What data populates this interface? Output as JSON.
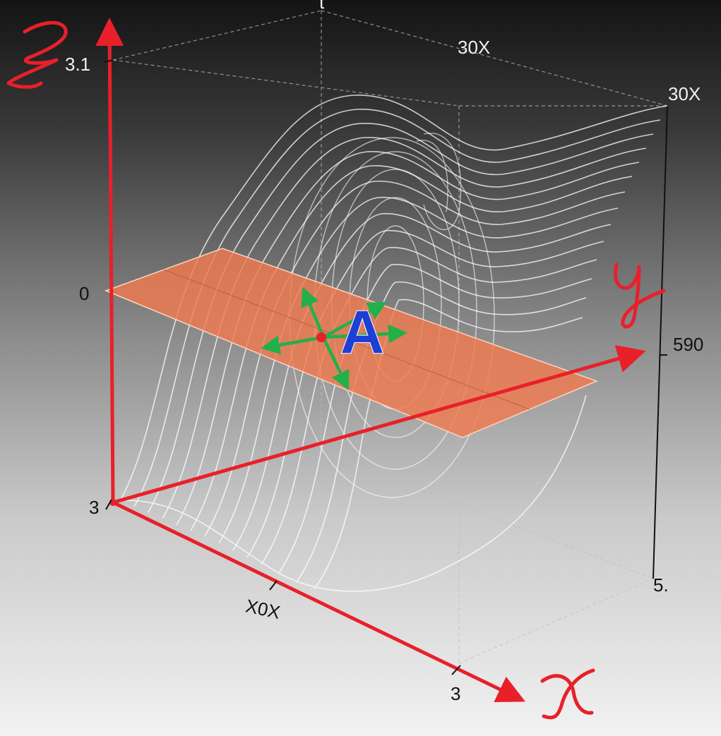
{
  "labels": {
    "z_top_tick": "3.1",
    "z_mid_tick": "0",
    "origin_tick": "3",
    "x_mid_tick": "X0X",
    "x_end_tick": "3",
    "y_tick": "590",
    "top_back_label": "30X",
    "top_right_label": "30X",
    "bottom_right_tick": "5.",
    "point_label": "A",
    "top_mark": "t"
  },
  "colors": {
    "axis": "#e8202a",
    "plane": "#f07a4f",
    "vectors": "#22b04a",
    "point_label": "#1d3fd6",
    "wireframe": "#ffffff",
    "box_edges": "#111111"
  },
  "handwritten_axis_names": [
    "z",
    "y",
    "x"
  ]
}
